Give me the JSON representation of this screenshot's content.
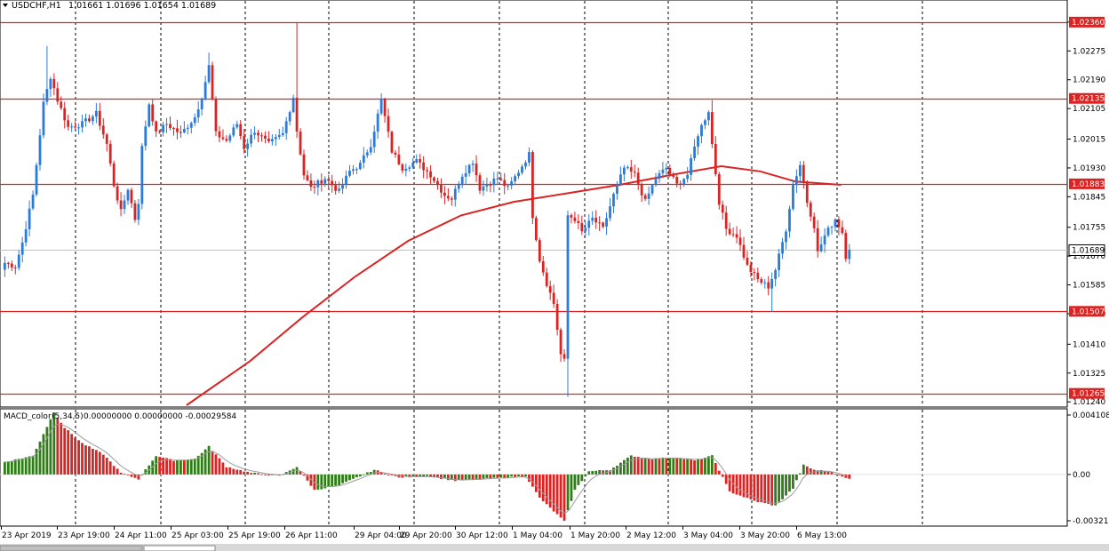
{
  "chart_data": [
    {
      "type": "candlestick",
      "header": {
        "symbol": "USDCHF,H1",
        "ohlc": "1.01661 1.01696 1.01654 1.01689"
      },
      "ylim": [
        1.0123,
        1.0242
      ],
      "price_ticks": [
        "1.02360",
        "1.02275",
        "1.02190",
        "1.02105",
        "1.02015",
        "1.01930",
        "1.01845",
        "1.01755",
        "1.01670",
        "1.01585",
        "1.01500",
        "1.01410",
        "1.01325",
        "1.01240"
      ],
      "horizontal_levels": [
        {
          "label": "1.02360",
          "value": 1.0236
        },
        {
          "label": "1.02135",
          "value": 1.02135
        },
        {
          "label": "1.01883",
          "value": 1.01883
        },
        {
          "label": "1.01507",
          "value": 1.01507
        },
        {
          "label": "1.01265",
          "value": 1.01265
        }
      ],
      "current_price": {
        "label": "1.01689",
        "value": 1.01689
      },
      "colors": {
        "bull": "#2b7bd8",
        "bear": "#d92424",
        "level": "#d92424",
        "ma": "#d92424",
        "grid": "#000000"
      },
      "time_labels": [
        "23 Apr 2019",
        "23 Apr 19:00",
        "24 Apr 11:00",
        "25 Apr 03:00",
        "25 Apr 19:00",
        "26 Apr 11:00",
        "29 Apr 04:00",
        "29 Apr 20:00",
        "30 Apr 12:00",
        "1 May 04:00",
        "1 May 20:00",
        "2 May 12:00",
        "3 May 04:00",
        "3 May 20:00",
        "6 May 13:00"
      ],
      "moving_average": [
        {
          "bar": 52,
          "value": 1.0123
        },
        {
          "bar": 70,
          "value": 1.0136
        },
        {
          "bar": 85,
          "value": 1.0149
        },
        {
          "bar": 100,
          "value": 1.0161
        },
        {
          "bar": 115,
          "value": 1.01715
        },
        {
          "bar": 130,
          "value": 1.0179
        },
        {
          "bar": 145,
          "value": 1.0183
        },
        {
          "bar": 160,
          "value": 1.01855
        },
        {
          "bar": 175,
          "value": 1.0188
        },
        {
          "bar": 190,
          "value": 1.0191
        },
        {
          "bar": 204,
          "value": 1.01935
        },
        {
          "bar": 215,
          "value": 1.0192
        },
        {
          "bar": 225,
          "value": 1.0189
        },
        {
          "bar": 238,
          "value": 1.0188
        }
      ],
      "waypoints": [
        [
          0,
          1.0165
        ],
        [
          3,
          1.0164
        ],
        [
          5,
          1.0171
        ],
        [
          8,
          1.0185
        ],
        [
          11,
          1.0212
        ],
        [
          13,
          1.022
        ],
        [
          15,
          1.0213
        ],
        [
          18,
          1.0205
        ],
        [
          22,
          1.0206
        ],
        [
          26,
          1.0209
        ],
        [
          29,
          1.02
        ],
        [
          31,
          1.0188
        ],
        [
          33,
          1.018
        ],
        [
          35,
          1.0187
        ],
        [
          37,
          1.0178
        ],
        [
          38,
          1.0183
        ],
        [
          39,
          1.0199
        ],
        [
          41,
          1.0212
        ],
        [
          43,
          1.0203
        ],
        [
          46,
          1.0206
        ],
        [
          50,
          1.0203
        ],
        [
          54,
          1.0208
        ],
        [
          56,
          1.0214
        ],
        [
          58,
          1.0223
        ],
        [
          60,
          1.0203
        ],
        [
          63,
          1.0201
        ],
        [
          66,
          1.0206
        ],
        [
          68,
          1.0199
        ],
        [
          71,
          1.0204
        ],
        [
          75,
          1.02
        ],
        [
          79,
          1.0203
        ],
        [
          82,
          1.0214
        ],
        [
          83,
          1.0204
        ],
        [
          85,
          1.0191
        ],
        [
          87,
          1.0187
        ],
        [
          91,
          1.019
        ],
        [
          95,
          1.0186
        ],
        [
          98,
          1.0192
        ],
        [
          101,
          1.0194
        ],
        [
          104,
          1.02
        ],
        [
          107,
          1.0213
        ],
        [
          110,
          1.0198
        ],
        [
          113,
          1.0193
        ],
        [
          117,
          1.0195
        ],
        [
          121,
          1.0191
        ],
        [
          125,
          1.0185
        ],
        [
          127,
          1.0184
        ],
        [
          130,
          1.0191
        ],
        [
          133,
          1.0195
        ],
        [
          135,
          1.0187
        ],
        [
          140,
          1.019
        ],
        [
          143,
          1.0187
        ],
        [
          146,
          1.0192
        ],
        [
          149,
          1.0197
        ],
        [
          150,
          1.0179
        ],
        [
          152,
          1.0166
        ],
        [
          154,
          1.0159
        ],
        [
          156,
          1.0153
        ],
        [
          158,
          1.0138
        ],
        [
          159,
          1.0136
        ],
        [
          160,
          1.0179
        ],
        [
          162,
          1.0178
        ],
        [
          164,
          1.0174
        ],
        [
          167,
          1.0178
        ],
        [
          170,
          1.0175
        ],
        [
          173,
          1.0185
        ],
        [
          176,
          1.0193
        ],
        [
          179,
          1.0191
        ],
        [
          182,
          1.0183
        ],
        [
          185,
          1.019
        ],
        [
          188,
          1.0193
        ],
        [
          191,
          1.0188
        ],
        [
          194,
          1.0191
        ],
        [
          197,
          1.0203
        ],
        [
          200,
          1.021
        ],
        [
          201,
          1.02
        ],
        [
          203,
          1.0183
        ],
        [
          205,
          1.0175
        ],
        [
          208,
          1.0173
        ],
        [
          211,
          1.0164
        ],
        [
          214,
          1.016
        ],
        [
          217,
          1.0158
        ],
        [
          219,
          1.0163
        ],
        [
          222,
          1.0175
        ],
        [
          224,
          1.0188
        ],
        [
          226,
          1.0194
        ],
        [
          228,
          1.0183
        ],
        [
          230,
          1.0176
        ],
        [
          231,
          1.0168
        ],
        [
          233,
          1.0173
        ],
        [
          236,
          1.0178
        ],
        [
          238,
          1.0174
        ],
        [
          239,
          1.0167
        ],
        [
          240,
          1.01689
        ]
      ],
      "extremes": [
        {
          "bar": 12,
          "high": 1.0229
        },
        {
          "bar": 58,
          "high": 1.0227
        },
        {
          "bar": 83,
          "high": 1.0236
        },
        {
          "bar": 107,
          "high": 1.0215
        },
        {
          "bar": 160,
          "low": 1.01255
        },
        {
          "bar": 201,
          "high": 1.0213
        },
        {
          "bar": 218,
          "low": 1.01505
        }
      ]
    },
    {
      "type": "histogram",
      "indicator": "MACD_color",
      "params": "(5,34,5)",
      "values": "0.00000000 0.00000000 -0.00029584",
      "ylim": [
        -0.0032,
        0.0041
      ],
      "ticks": [
        "0.0041081",
        "0.00",
        "-0.003213"
      ],
      "colors": {
        "rising": "#2e7d16",
        "falling": "#d92424",
        "signal": "#9a9a9a"
      },
      "waypoints": [
        [
          0,
          0.0008
        ],
        [
          8,
          0.0012
        ],
        [
          14,
          0.004
        ],
        [
          17,
          0.003
        ],
        [
          22,
          0.002
        ],
        [
          28,
          0.0013
        ],
        [
          33,
          0.0001
        ],
        [
          38,
          -0.0003
        ],
        [
          43,
          0.0012
        ],
        [
          48,
          0.0009
        ],
        [
          54,
          0.001
        ],
        [
          58,
          0.0018
        ],
        [
          63,
          0.0005
        ],
        [
          70,
          0.0001
        ],
        [
          78,
          -0.0001
        ],
        [
          83,
          0.0005
        ],
        [
          88,
          -0.001
        ],
        [
          95,
          -0.0007
        ],
        [
          105,
          0.0003
        ],
        [
          112,
          -0.0002
        ],
        [
          120,
          -0.0001
        ],
        [
          128,
          -0.0004
        ],
        [
          135,
          -0.0003
        ],
        [
          142,
          -0.0002
        ],
        [
          148,
          -0.0001
        ],
        [
          152,
          -0.0015
        ],
        [
          159,
          -0.003
        ],
        [
          162,
          -0.001
        ],
        [
          166,
          0.0002
        ],
        [
          172,
          0.0003
        ],
        [
          178,
          0.0012
        ],
        [
          184,
          0.001
        ],
        [
          190,
          0.0011
        ],
        [
          196,
          0.0009
        ],
        [
          201,
          0.0012
        ],
        [
          206,
          -0.0011
        ],
        [
          213,
          -0.0017
        ],
        [
          219,
          -0.002
        ],
        [
          224,
          -0.0009
        ],
        [
          227,
          0.0006
        ],
        [
          230,
          0.0003
        ],
        [
          234,
          0.0002
        ],
        [
          238,
          -0.0001
        ],
        [
          240,
          -0.0003
        ]
      ]
    }
  ]
}
